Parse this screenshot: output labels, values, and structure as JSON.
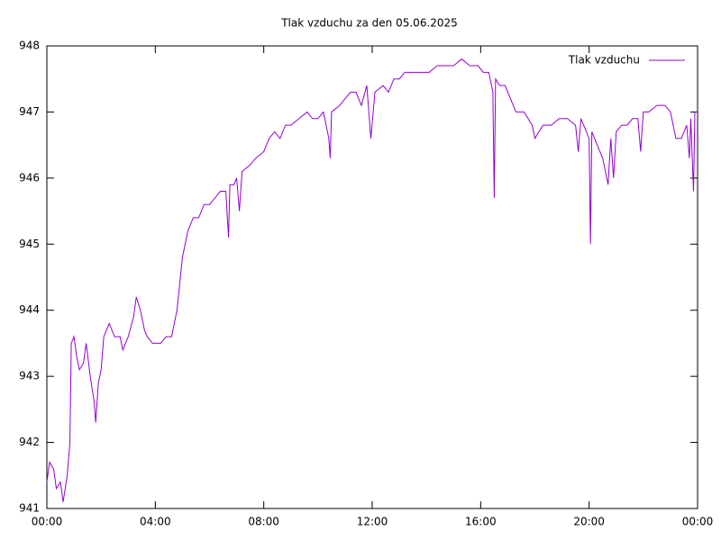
{
  "chart_data": {
    "type": "line",
    "title": "Tlak vzduchu za den 05.06.2025",
    "x": [
      0.0,
      0.1,
      0.25,
      0.35,
      0.5,
      0.6,
      0.75,
      0.85,
      0.9,
      1.0,
      1.1,
      1.2,
      1.35,
      1.45,
      1.6,
      1.75,
      1.8,
      1.9,
      2.0,
      2.1,
      2.3,
      2.5,
      2.7,
      2.8,
      3.0,
      3.2,
      3.3,
      3.45,
      3.6,
      3.7,
      3.9,
      4.2,
      4.4,
      4.6,
      4.7,
      4.8,
      4.9,
      5.0,
      5.2,
      5.4,
      5.6,
      5.8,
      6.0,
      6.2,
      6.4,
      6.6,
      6.7,
      6.75,
      6.9,
      7.0,
      7.1,
      7.2,
      7.5,
      7.7,
      8.0,
      8.2,
      8.4,
      8.6,
      8.8,
      9.0,
      9.3,
      9.6,
      9.8,
      10.0,
      10.2,
      10.4,
      10.45,
      10.5,
      10.8,
      11.0,
      11.2,
      11.4,
      11.6,
      11.8,
      11.95,
      12.1,
      12.4,
      12.6,
      12.8,
      13.0,
      13.2,
      13.5,
      13.8,
      14.1,
      14.4,
      14.7,
      15.0,
      15.3,
      15.6,
      15.9,
      16.1,
      16.3,
      16.45,
      16.5,
      16.55,
      16.7,
      16.9,
      17.1,
      17.3,
      17.6,
      17.9,
      18.0,
      18.3,
      18.6,
      18.9,
      19.2,
      19.5,
      19.6,
      19.7,
      19.9,
      20.0,
      20.05,
      20.1,
      20.3,
      20.5,
      20.7,
      20.8,
      20.9,
      21.0,
      21.2,
      21.4,
      21.6,
      21.8,
      21.9,
      22.0,
      22.2,
      22.5,
      22.8,
      23.0,
      23.2,
      23.4,
      23.6,
      23.7,
      23.75,
      23.85,
      23.9,
      24.0
    ],
    "series": [
      {
        "name": "Tlak vzduchu",
        "color": "#9400d3",
        "values": [
          941.4,
          941.7,
          941.6,
          941.3,
          941.4,
          941.1,
          941.5,
          942.0,
          943.5,
          943.6,
          943.3,
          943.1,
          943.2,
          943.5,
          943.0,
          942.6,
          942.3,
          942.9,
          943.1,
          943.6,
          943.8,
          943.6,
          943.6,
          943.4,
          943.6,
          943.9,
          944.2,
          944.0,
          943.7,
          943.6,
          943.5,
          943.5,
          943.6,
          943.6,
          943.8,
          944.0,
          944.4,
          944.8,
          945.2,
          945.4,
          945.4,
          945.6,
          945.6,
          945.7,
          945.8,
          945.8,
          945.1,
          945.9,
          945.9,
          946.0,
          945.5,
          946.1,
          946.2,
          946.3,
          946.4,
          946.6,
          946.7,
          946.6,
          946.8,
          946.8,
          946.9,
          947.0,
          946.9,
          946.9,
          947.0,
          946.6,
          946.3,
          947.0,
          947.1,
          947.2,
          947.3,
          947.3,
          947.1,
          947.4,
          946.6,
          947.3,
          947.4,
          947.3,
          947.5,
          947.5,
          947.6,
          947.6,
          947.6,
          947.6,
          947.7,
          947.7,
          947.7,
          947.8,
          947.7,
          947.7,
          947.6,
          947.6,
          947.3,
          945.7,
          947.5,
          947.4,
          947.4,
          947.2,
          947.0,
          947.0,
          946.8,
          946.6,
          946.8,
          946.8,
          946.9,
          946.9,
          946.8,
          946.4,
          946.9,
          946.7,
          946.6,
          945.0,
          946.7,
          946.5,
          946.3,
          945.9,
          946.6,
          946.0,
          946.7,
          946.8,
          946.8,
          946.9,
          946.9,
          946.4,
          947.0,
          947.0,
          947.1,
          947.1,
          947.0,
          946.6,
          946.6,
          946.8,
          946.3,
          946.9,
          945.8,
          947.0,
          947.0
        ]
      }
    ],
    "xlim": [
      0,
      24
    ],
    "xticks": [
      {
        "value": 0,
        "label": "00:00"
      },
      {
        "value": 4,
        "label": "04:00"
      },
      {
        "value": 8,
        "label": "08:00"
      },
      {
        "value": 12,
        "label": "12:00"
      },
      {
        "value": 16,
        "label": "16:00"
      },
      {
        "value": 20,
        "label": "20:00"
      },
      {
        "value": 24,
        "label": "00:00"
      }
    ],
    "ylim": [
      941,
      948
    ],
    "yticks": [
      941,
      942,
      943,
      944,
      945,
      946,
      947,
      948
    ],
    "legend": "top-right"
  }
}
